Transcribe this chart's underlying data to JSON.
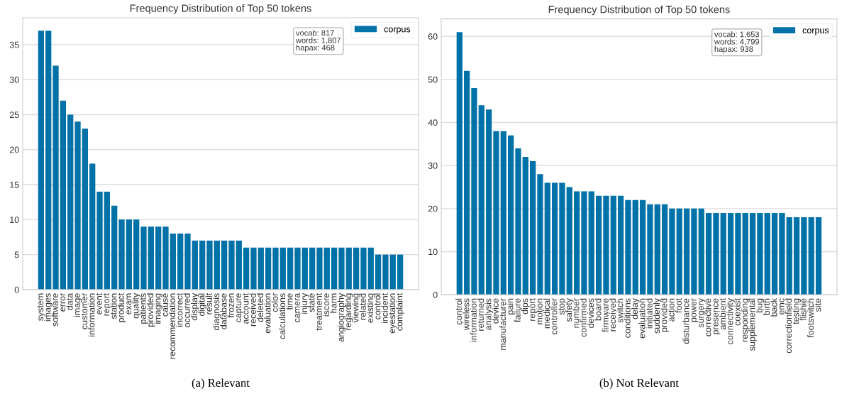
{
  "chart_data": [
    {
      "type": "bar",
      "title": "Frequency Distribution of Top 50 tokens",
      "categories": [
        "system",
        "images",
        "software",
        "error",
        "data",
        "image",
        "customer",
        "information",
        "event",
        "report",
        "station",
        "product",
        "exam",
        "quality",
        "patients",
        "provided",
        "imaging",
        "cause",
        "recommendation",
        "incorrect",
        "occurred",
        "display",
        "digital",
        "result",
        "diagnosis",
        "database",
        "frozen",
        "capture",
        "account",
        "received",
        "deleted",
        "evaluation",
        "color",
        "calculations",
        "time",
        "camera",
        "injury",
        "state",
        "treatment",
        "iscore",
        "harm",
        "angiography",
        "regarding",
        "viewing",
        "related",
        "existing",
        "control",
        "incident",
        "eyestation",
        "complaint"
      ],
      "series": [
        {
          "name": "corpus",
          "color": "#0072a8",
          "values": [
            37,
            37,
            32,
            27,
            25,
            24,
            23,
            18,
            14,
            14,
            12,
            10,
            10,
            10,
            9,
            9,
            9,
            9,
            8,
            8,
            8,
            7,
            7,
            7,
            7,
            7,
            7,
            7,
            6,
            6,
            6,
            6,
            6,
            6,
            6,
            6,
            6,
            6,
            6,
            6,
            6,
            6,
            6,
            6,
            6,
            6,
            5,
            5,
            5,
            5
          ]
        }
      ],
      "ylim": [
        0,
        38.85
      ],
      "yticks": [
        0,
        5,
        10,
        15,
        20,
        25,
        30,
        35
      ],
      "grid": "y",
      "legend": "top right",
      "annotations": [
        "vocab: 817\nwords: 1,807\nhapax: 468",
        "(a) Relevant"
      ]
    },
    {
      "type": "bar",
      "title": "Frequency Distribution of Top 50 tokens",
      "categories": [
        "control",
        "wireless",
        "information",
        "returned",
        "analysis",
        "device",
        "manufacturer",
        "pain",
        "failure",
        "dips",
        "report",
        "motion",
        "medical",
        "controller",
        "stop",
        "safety",
        "number",
        "confirmed",
        "devices",
        "board",
        "firmware",
        "received",
        "switch",
        "conditions",
        "delay",
        "evaluation",
        "initiated",
        "suddenly",
        "provided",
        "action",
        "foot",
        "disturbance",
        "power",
        "surgery",
        "corrective",
        "presence",
        "ambient",
        "connectivity",
        "coexist",
        "responding",
        "supplemental",
        "bug",
        "birth",
        "back",
        "emc",
        "correctionfield",
        "testing",
        "flishie",
        "footswitch",
        "site"
      ],
      "series": [
        {
          "name": "corpus",
          "color": "#0072a8",
          "values": [
            61,
            52,
            48,
            44,
            43,
            38,
            38,
            37,
            34,
            32,
            31,
            28,
            26,
            26,
            26,
            25,
            24,
            24,
            24,
            23,
            23,
            23,
            23,
            22,
            22,
            22,
            21,
            21,
            21,
            20,
            20,
            20,
            20,
            20,
            19,
            19,
            19,
            19,
            19,
            19,
            19,
            19,
            19,
            19,
            19,
            18,
            18,
            18,
            18,
            18
          ]
        }
      ],
      "ylim": [
        0,
        64.05
      ],
      "yticks": [
        0,
        10,
        20,
        30,
        40,
        50,
        60
      ],
      "grid": "y",
      "legend": "top right",
      "annotations": [
        "vocab: 1,653\nwords: 4,799\nhapax: 938",
        "(b) Not Relevant"
      ]
    }
  ]
}
